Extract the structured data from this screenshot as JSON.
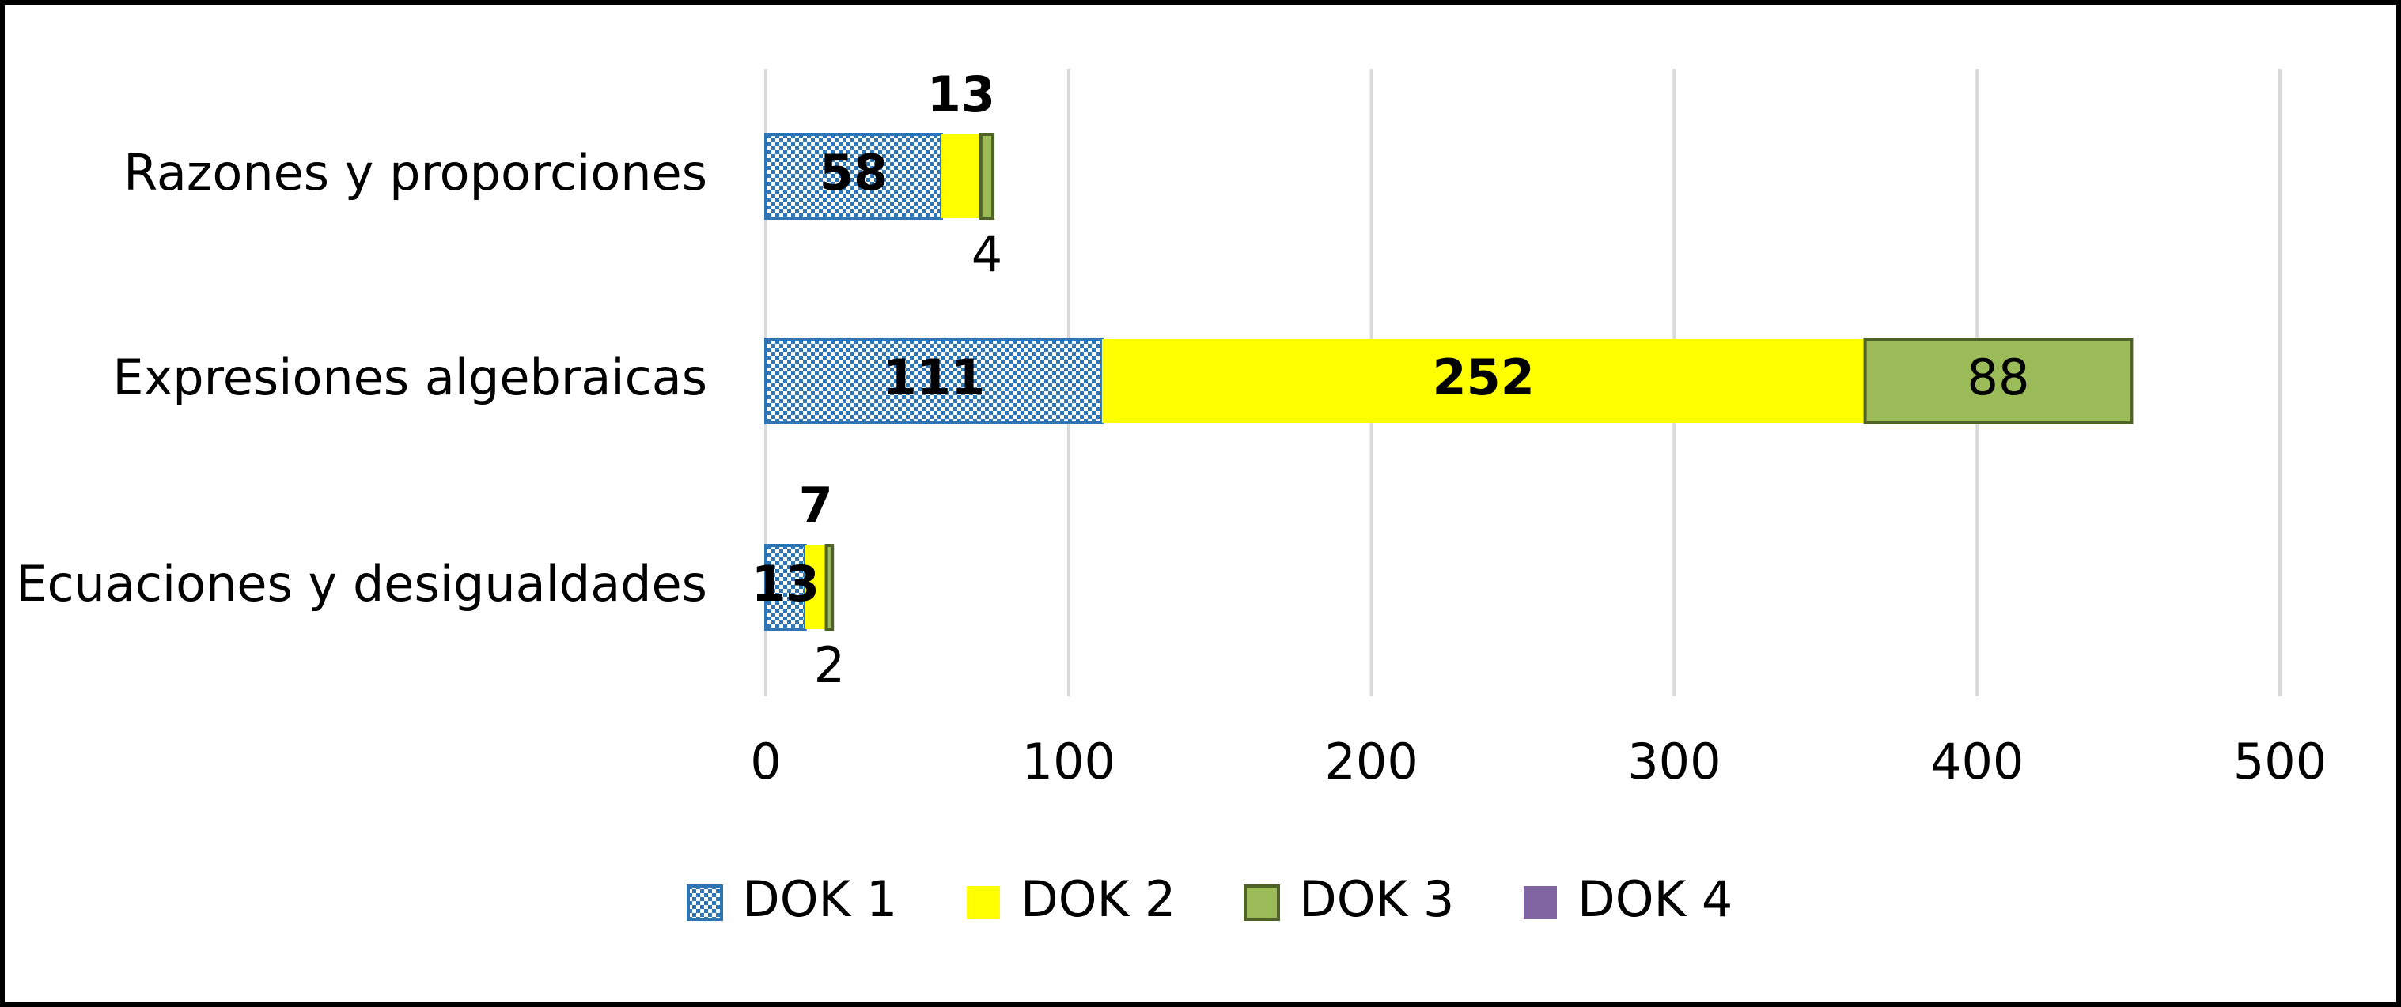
{
  "chart_data": {
    "type": "stacked-bar-horizontal",
    "categories": [
      "Razones y proporciones",
      "Expresiones algebraicas",
      "Ecuaciones y desigualdades"
    ],
    "series": [
      {
        "name": "DOK 1",
        "color": "#2e75b6",
        "pattern": "checker",
        "bold_labels": true,
        "values": [
          58,
          111,
          13
        ]
      },
      {
        "name": "DOK 2",
        "color": "#ffff00",
        "bold_labels": true,
        "values": [
          13,
          252,
          7
        ]
      },
      {
        "name": "DOK 3",
        "color": "#9bbb59",
        "bold_labels": false,
        "values": [
          4,
          88,
          2
        ]
      },
      {
        "name": "DOK 4",
        "color": "#8064a2",
        "bold_labels": false,
        "values": [
          0,
          0,
          0
        ]
      }
    ],
    "xlim": [
      0,
      500
    ],
    "xticks": [
      0,
      100,
      200,
      300,
      400,
      500
    ],
    "grid": true,
    "legend": "bottom"
  }
}
